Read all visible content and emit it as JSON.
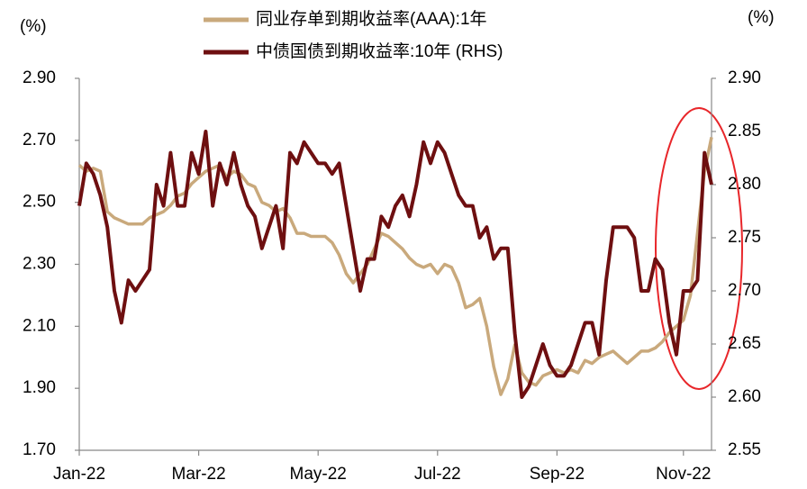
{
  "chart_data": {
    "type": "line",
    "y_label": "(%)",
    "y2_label": "(%)",
    "categories": [
      "Jan-22",
      null,
      null,
      null,
      null,
      null,
      null,
      null,
      null,
      null,
      null,
      null,
      null,
      null,
      null,
      null,
      null,
      "Mar-22",
      null,
      null,
      null,
      null,
      null,
      null,
      null,
      null,
      null,
      null,
      null,
      null,
      null,
      null,
      null,
      null,
      "May-22",
      null,
      null,
      null,
      null,
      null,
      null,
      null,
      null,
      null,
      null,
      null,
      null,
      null,
      null,
      null,
      null,
      "Jul-22",
      null,
      null,
      null,
      null,
      null,
      null,
      null,
      null,
      null,
      null,
      null,
      null,
      null,
      null,
      null,
      null,
      "Sep-22",
      null,
      null,
      null,
      null,
      null,
      null,
      null,
      null,
      null,
      null,
      null,
      null,
      null,
      null,
      null,
      null,
      null,
      "Nov-22",
      null,
      null,
      null,
      null
    ],
    "series": [
      {
        "name": "同业存单到期收益率(AAA):1年",
        "color": "#c9a97c",
        "axis": "y",
        "values": [
          2.62,
          2.6,
          2.61,
          2.6,
          2.47,
          2.45,
          2.44,
          2.43,
          2.43,
          2.43,
          2.45,
          2.46,
          2.47,
          2.49,
          2.52,
          2.53,
          2.56,
          2.58,
          2.6,
          2.61,
          2.62,
          2.58,
          2.6,
          2.59,
          2.56,
          2.55,
          2.5,
          2.49,
          2.47,
          2.48,
          2.45,
          2.4,
          2.4,
          2.39,
          2.39,
          2.39,
          2.37,
          2.33,
          2.27,
          2.24,
          2.27,
          2.3,
          2.35,
          2.4,
          2.39,
          2.37,
          2.35,
          2.32,
          2.3,
          2.29,
          2.3,
          2.27,
          2.3,
          2.29,
          2.24,
          2.16,
          2.17,
          2.19,
          2.1,
          1.97,
          1.88,
          1.93,
          2.04,
          1.95,
          1.92,
          1.91,
          1.94,
          1.95,
          1.96,
          1.95,
          1.96,
          1.95,
          1.99,
          1.98,
          2.0,
          2.01,
          2.02,
          2.0,
          1.98,
          2.0,
          2.02,
          2.02,
          2.03,
          2.05,
          2.08,
          2.1,
          2.12,
          2.2,
          2.4,
          2.6,
          2.71
        ]
      },
      {
        "name": "中债国债到期收益率:10年 (RHS)",
        "color": "#6e0f10",
        "axis": "y2",
        "values": [
          2.78,
          2.82,
          2.81,
          2.79,
          2.76,
          2.7,
          2.67,
          2.71,
          2.7,
          2.71,
          2.72,
          2.8,
          2.78,
          2.83,
          2.78,
          2.78,
          2.83,
          2.81,
          2.85,
          2.78,
          2.82,
          2.8,
          2.83,
          2.8,
          2.78,
          2.77,
          2.74,
          2.76,
          2.78,
          2.74,
          2.83,
          2.82,
          2.84,
          2.83,
          2.82,
          2.82,
          2.81,
          2.82,
          2.78,
          2.74,
          2.7,
          2.73,
          2.73,
          2.77,
          2.76,
          2.78,
          2.79,
          2.77,
          2.8,
          2.84,
          2.82,
          2.84,
          2.83,
          2.81,
          2.79,
          2.78,
          2.78,
          2.75,
          2.76,
          2.73,
          2.74,
          2.74,
          2.66,
          2.6,
          2.61,
          2.63,
          2.65,
          2.63,
          2.62,
          2.62,
          2.63,
          2.65,
          2.67,
          2.67,
          2.64,
          2.71,
          2.76,
          2.76,
          2.76,
          2.75,
          2.7,
          2.7,
          2.73,
          2.72,
          2.67,
          2.64,
          2.7,
          2.7,
          2.71,
          2.83,
          2.8
        ]
      }
    ],
    "ylim": [
      1.7,
      2.9
    ],
    "yticks": [
      {
        "value": 1.7,
        "label": "1.70"
      },
      {
        "value": 1.9,
        "label": "1.90"
      },
      {
        "value": 2.1,
        "label": "2.10"
      },
      {
        "value": 2.3,
        "label": "2.30"
      },
      {
        "value": 2.5,
        "label": "2.50"
      },
      {
        "value": 2.7,
        "label": "2.70"
      },
      {
        "value": 2.9,
        "label": "2.90"
      }
    ],
    "y2lim": [
      2.55,
      2.9
    ],
    "y2ticks": [
      2.55,
      {
        "value": 2.6,
        "label": "2.60"
      },
      2.65,
      {
        "value": 2.7,
        "label": "2.70"
      },
      2.75,
      {
        "value": 2.8,
        "label": "2.80"
      },
      2.85,
      {
        "value": 2.9,
        "label": "2.90"
      }
    ],
    "grid": false,
    "legend": "top"
  }
}
